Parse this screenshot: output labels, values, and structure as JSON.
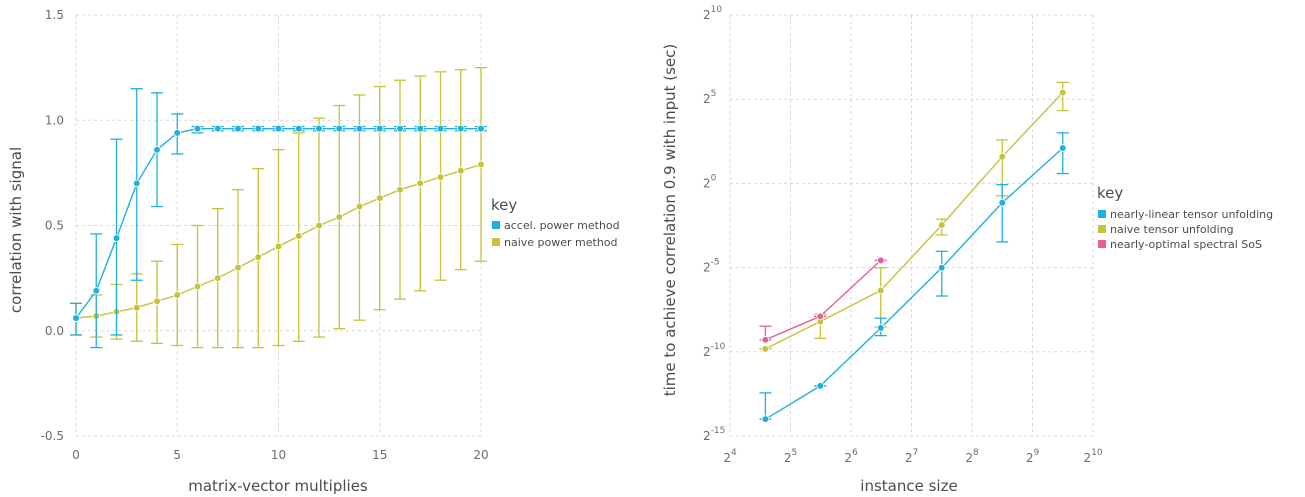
{
  "colors": {
    "blue": "#1fb0e0",
    "olive": "#c7c23a",
    "pink": "#ea5f93"
  },
  "chart_data": [
    {
      "type": "line",
      "xlabel": "matrix-vector multiplies",
      "ylabel": "correlation with signal",
      "xlim": [
        0,
        20
      ],
      "ylim": [
        -0.5,
        1.5
      ],
      "x_ticks": [
        "0",
        "5",
        "10",
        "15",
        "20"
      ],
      "y_ticks": [
        "-0.5",
        "0.0",
        "0.5",
        "1.0",
        "1.5"
      ],
      "grid": true,
      "legend": {
        "title": "key",
        "position": "right"
      },
      "series": [
        {
          "name": "accel. power method",
          "color": "#1fb0e0",
          "x": [
            0,
            1,
            2,
            3,
            4,
            5,
            6,
            7,
            8,
            9,
            10,
            11,
            12,
            13,
            14,
            15,
            16,
            17,
            18,
            19,
            20
          ],
          "y": [
            0.06,
            0.19,
            0.44,
            0.7,
            0.86,
            0.94,
            0.96,
            0.96,
            0.96,
            0.96,
            0.96,
            0.96,
            0.96,
            0.96,
            0.96,
            0.96,
            0.96,
            0.96,
            0.96,
            0.96,
            0.96
          ],
          "err_low": [
            -0.02,
            -0.08,
            -0.02,
            0.24,
            0.59,
            0.84,
            0.94,
            0.95,
            0.95,
            0.95,
            0.95,
            0.95,
            0.95,
            0.95,
            0.95,
            0.95,
            0.95,
            0.95,
            0.95,
            0.95,
            0.95
          ],
          "err_high": [
            0.13,
            0.46,
            0.91,
            1.15,
            1.13,
            1.03,
            0.97,
            0.97,
            0.97,
            0.97,
            0.97,
            0.97,
            0.97,
            0.97,
            0.97,
            0.97,
            0.97,
            0.97,
            0.97,
            0.97,
            0.97
          ]
        },
        {
          "name": "naive power method",
          "color": "#c7c23a",
          "x": [
            0,
            1,
            2,
            3,
            4,
            5,
            6,
            7,
            8,
            9,
            10,
            11,
            12,
            13,
            14,
            15,
            16,
            17,
            18,
            19,
            20
          ],
          "y": [
            0.06,
            0.07,
            0.09,
            0.11,
            0.14,
            0.17,
            0.21,
            0.25,
            0.3,
            0.35,
            0.4,
            0.45,
            0.5,
            0.54,
            0.59,
            0.63,
            0.67,
            0.7,
            0.73,
            0.76,
            0.79
          ],
          "err_low": [
            -0.02,
            -0.03,
            -0.04,
            -0.05,
            -0.06,
            -0.07,
            -0.08,
            -0.08,
            -0.08,
            -0.08,
            -0.07,
            -0.05,
            -0.03,
            0.01,
            0.05,
            0.1,
            0.15,
            0.19,
            0.24,
            0.29,
            0.33
          ],
          "err_high": [
            0.13,
            0.17,
            0.22,
            0.27,
            0.33,
            0.41,
            0.5,
            0.58,
            0.67,
            0.77,
            0.86,
            0.94,
            1.01,
            1.07,
            1.12,
            1.16,
            1.19,
            1.21,
            1.23,
            1.24,
            1.25
          ]
        }
      ]
    },
    {
      "type": "line",
      "xlabel": "instance size",
      "ylabel": "time to achieve correlation 0.9 with input (sec)",
      "xscale": "log2",
      "yscale": "log2",
      "xlim": [
        16,
        1024
      ],
      "ylim": [
        3.05e-05,
        1024
      ],
      "x_tick_exponents": [
        4,
        5,
        6,
        7,
        8,
        9,
        10
      ],
      "y_tick_exponents": [
        -15,
        -10,
        -5,
        0,
        5,
        10
      ],
      "tick_base": "2",
      "grid": true,
      "legend": {
        "title": "key",
        "position": "right"
      },
      "series": [
        {
          "name": "nearly-linear tensor unfolding",
          "color": "#1fb0e0",
          "x": [
            24,
            45,
            90,
            181,
            362,
            724
          ],
          "y": [
            6.1e-05,
            0.00024,
            0.0026,
            0.031,
            0.45,
            4.3
          ],
          "err_low": [
            6.1e-05,
            0.00024,
            0.0019,
            0.0097,
            0.09,
            1.5
          ],
          "err_high": [
            0.00018,
            0.00024,
            0.0039,
            0.061,
            0.95,
            8.0
          ]
        },
        {
          "name": "naive tensor unfolding",
          "color": "#c7c23a",
          "x": [
            24,
            45,
            90,
            181,
            362,
            724
          ],
          "y": [
            0.0011,
            0.0034,
            0.0122,
            0.18,
            3.0,
            42.0
          ],
          "err_low": [
            0.0011,
            0.0017,
            0.0027,
            0.12,
            0.6,
            20.0
          ],
          "err_high": [
            0.0011,
            0.0046,
            0.031,
            0.23,
            6.0,
            64.0
          ]
        },
        {
          "name": "nearly-optimal spectral SoS",
          "color": "#ea5f93",
          "x": [
            24,
            45,
            90
          ],
          "y": [
            0.0016,
            0.0042,
            0.042
          ],
          "err_low": [
            0.0016,
            0.0042,
            0.042
          ],
          "err_high": [
            0.0028,
            0.0042,
            0.042
          ]
        }
      ]
    }
  ]
}
